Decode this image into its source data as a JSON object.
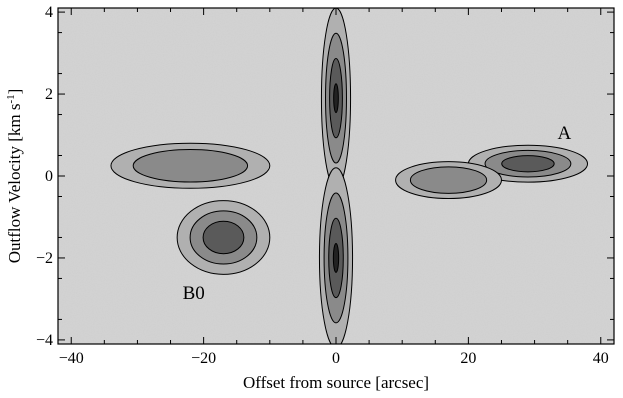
{
  "chart_data": {
    "type": "heatmap",
    "xlabel": "Offset from source [arcsec]",
    "ylabel_main": "Outflow Velocity  [km s",
    "ylabel_sup": "-1",
    "ylabel_close": "]",
    "xlim": [
      -42,
      42
    ],
    "ylim": [
      -4.1,
      4.1
    ],
    "x_ticks": [
      -40,
      -20,
      0,
      20,
      40
    ],
    "y_ticks": [
      -4,
      -2,
      0,
      2,
      4
    ],
    "annotations": [
      {
        "text": "A",
        "x": 34.5,
        "y": 0.9
      },
      {
        "text": "B0",
        "x": -21.5,
        "y": -3.0
      }
    ],
    "features": [
      {
        "name": "central-jet-upper",
        "cx": 0,
        "cy": 1.9,
        "rx": 2.2,
        "ry": 2.2,
        "level": 3
      },
      {
        "name": "central-jet-lower",
        "cx": 0,
        "cy": -2.0,
        "rx": 2.5,
        "ry": 2.2,
        "level": 3
      },
      {
        "name": "knot-A",
        "cx": 29,
        "cy": 0.3,
        "rx": 9,
        "ry": 0.45,
        "level": 2
      },
      {
        "name": "knot-B0",
        "cx": -17,
        "cy": -1.5,
        "rx": 7,
        "ry": 0.9,
        "level": 2
      },
      {
        "name": "left-wing",
        "cx": -22,
        "cy": 0.25,
        "rx": 12,
        "ry": 0.55,
        "level": 1
      },
      {
        "name": "right-wing",
        "cx": 17,
        "cy": -0.1,
        "rx": 8,
        "ry": 0.45,
        "level": 1
      }
    ],
    "grid": false,
    "legend": "none",
    "colormap": "grayscale"
  }
}
